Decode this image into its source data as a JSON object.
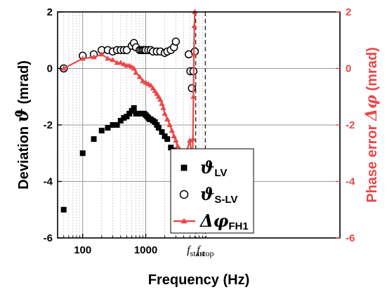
{
  "chart_data": {
    "type": "scatter",
    "xlabel": "Frequency (Hz)",
    "ylabel_left": {
      "prefix": "Deviation ",
      "symbol": "ϑ",
      "suffix": " (mrad)"
    },
    "ylabel_right": {
      "prefix": "Phase error ",
      "symbol": "Δφ",
      "suffix": " (mrad)"
    },
    "x_scale": "log",
    "xlim": [
      40,
      1200000
    ],
    "ylim_left": [
      -6,
      2
    ],
    "ylim_right": [
      -6,
      2
    ],
    "x_ticks": [
      100,
      1000
    ],
    "x_tick_labels": [
      "100",
      "1000"
    ],
    "y_ticks": [
      -6,
      -4,
      -2,
      0,
      2
    ],
    "y_tick_labels": [
      "-6",
      "-4",
      "-2",
      "0",
      "2"
    ],
    "grid": true,
    "legend_position": "bottom-center",
    "colors": {
      "black": "#000000",
      "red": "#e84848",
      "grid": "#c8c8c8"
    },
    "annotations": [
      {
        "base": "f",
        "sub": "start",
        "x": 6200
      },
      {
        "base": "f",
        "sub": "stop",
        "x": 8800
      }
    ],
    "series": [
      {
        "id": "theta_lv",
        "name_symbol": "ϑ",
        "name_sub": "LV",
        "marker": "square-filled",
        "color": "#000000",
        "x": [
          50,
          100,
          150,
          200,
          250,
          300,
          350,
          400,
          450,
          500,
          550,
          600,
          650,
          700,
          800,
          850,
          900,
          950,
          1000,
          1050,
          1100,
          1150,
          1200,
          1300,
          1400,
          1500,
          1600,
          1800,
          2000,
          2200,
          2500,
          2800,
          3000,
          3500,
          4000,
          4500,
          5000,
          5500,
          6000,
          6800
        ],
        "y": [
          -5.0,
          -3.0,
          -2.5,
          -2.2,
          -2.1,
          -2.0,
          -2.0,
          -1.85,
          -1.75,
          -1.7,
          -1.6,
          -1.5,
          -1.4,
          -1.6,
          -1.6,
          -1.6,
          -1.6,
          -1.6,
          -1.65,
          -1.7,
          -1.75,
          -1.8,
          -1.8,
          -1.85,
          -1.9,
          -2.0,
          -2.1,
          -2.25,
          -2.4,
          -2.5,
          -2.8,
          -2.9,
          -3.0,
          -3.6,
          -3.9,
          -4.1,
          -4.65,
          -4.1,
          -3.9,
          -3.4
        ]
      },
      {
        "id": "theta_slv",
        "name_symbol": "ϑ",
        "name_sub": "S-LV",
        "marker": "circle-open",
        "color": "#000000",
        "x": [
          50,
          100,
          150,
          200,
          250,
          300,
          350,
          400,
          450,
          500,
          600,
          650,
          700,
          800,
          850,
          900,
          950,
          1000,
          1100,
          1200,
          1300,
          1500,
          1700,
          2000,
          2200,
          2500,
          2800,
          3000,
          4800,
          5100,
          5400,
          5700,
          6000
        ],
        "y": [
          0.0,
          0.45,
          0.5,
          0.65,
          0.65,
          0.6,
          0.65,
          0.65,
          0.65,
          0.65,
          0.8,
          0.9,
          0.75,
          0.65,
          0.65,
          0.65,
          0.65,
          0.65,
          0.65,
          0.65,
          0.6,
          0.6,
          0.6,
          0.55,
          0.6,
          0.65,
          0.75,
          0.95,
          0.5,
          -0.1,
          -0.7,
          -0.1,
          0.6
        ]
      },
      {
        "id": "delta_phi_fh1",
        "name_symbol": "Δφ",
        "name_sub": "FH1",
        "marker": "triangle-line",
        "color": "#e84848",
        "axis": "right",
        "x": [
          50,
          100,
          150,
          200,
          250,
          300,
          350,
          400,
          450,
          500,
          550,
          600,
          650,
          700,
          800,
          900,
          1000,
          1100,
          1200,
          1300,
          1400,
          1500,
          1600,
          1700,
          1800,
          1900,
          2000,
          2200,
          2400,
          2600,
          2800,
          3000,
          3200,
          3400,
          3600,
          3800,
          4000,
          4500,
          5000,
          5500,
          5600,
          5700,
          5800,
          5900,
          6000
        ],
        "y": [
          0.0,
          0.35,
          0.4,
          0.5,
          0.35,
          0.3,
          0.2,
          0.2,
          0.15,
          0.1,
          0.1,
          0.05,
          0.0,
          -0.15,
          -0.3,
          -0.45,
          -0.5,
          -0.55,
          -0.6,
          -0.7,
          -0.8,
          -0.9,
          -1.0,
          -1.1,
          -1.25,
          -1.4,
          -1.6,
          -1.8,
          -2.0,
          -2.2,
          -2.4,
          -2.55,
          -2.75,
          -2.85,
          -2.9,
          -2.95,
          -3.0,
          -2.9,
          -2.55,
          -3.2,
          -2.5,
          -1.0,
          0.5,
          1.5,
          2.0
        ]
      }
    ]
  }
}
